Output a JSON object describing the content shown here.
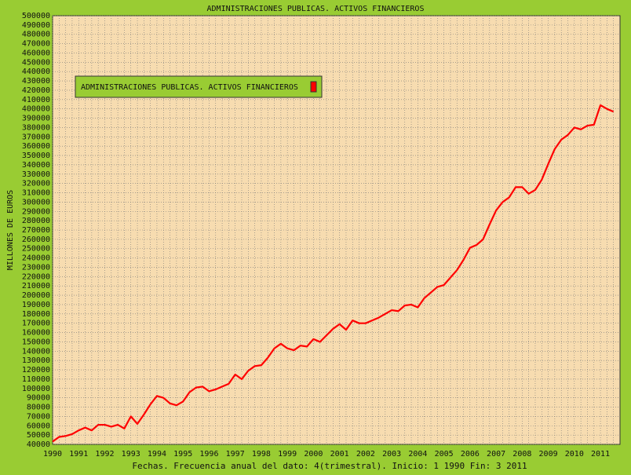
{
  "chart_data": {
    "type": "line",
    "title": "ADMINISTRACIONES PUBLICAS. ACTIVOS FINANCIEROS",
    "y_label": "MILLONES DE EUROS",
    "x_label": "Fechas. Frecuencia anual del dato: 4(trimestral). Inicio: 1 1990 Fin: 3 2011",
    "legend": "upper left",
    "grid": true,
    "xlim": [
      1990,
      2011.75
    ],
    "ylim": [
      40000,
      500000
    ],
    "xticks": [
      1990,
      1991,
      1992,
      1993,
      1994,
      1995,
      1996,
      1997,
      1998,
      1999,
      2000,
      2001,
      2002,
      2003,
      2004,
      2005,
      2006,
      2007,
      2008,
      2009,
      2010,
      2011
    ],
    "yticks": [
      40000,
      50000,
      60000,
      70000,
      80000,
      90000,
      100000,
      110000,
      120000,
      130000,
      140000,
      150000,
      160000,
      170000,
      180000,
      190000,
      200000,
      210000,
      220000,
      230000,
      240000,
      250000,
      260000,
      270000,
      280000,
      290000,
      300000,
      310000,
      320000,
      330000,
      340000,
      350000,
      360000,
      370000,
      380000,
      390000,
      400000,
      410000,
      420000,
      430000,
      440000,
      450000,
      460000,
      470000,
      480000,
      490000,
      500000
    ],
    "x": [
      1990,
      1990.25,
      1990.5,
      1990.75,
      1991,
      1991.25,
      1991.5,
      1991.75,
      1992,
      1992.25,
      1992.5,
      1992.75,
      1993,
      1993.25,
      1993.5,
      1993.75,
      1994,
      1994.25,
      1994.5,
      1994.75,
      1995,
      1995.25,
      1995.5,
      1995.75,
      1996,
      1996.25,
      1996.5,
      1996.75,
      1997,
      1997.25,
      1997.5,
      1997.75,
      1998,
      1998.25,
      1998.5,
      1998.75,
      1999,
      1999.25,
      1999.5,
      1999.75,
      2000,
      2000.25,
      2000.5,
      2000.75,
      2001,
      2001.25,
      2001.5,
      2001.75,
      2002,
      2002.25,
      2002.5,
      2002.75,
      2003,
      2003.25,
      2003.5,
      2003.75,
      2004,
      2004.25,
      2004.5,
      2004.75,
      2005,
      2005.25,
      2005.5,
      2005.75,
      2006,
      2006.25,
      2006.5,
      2006.75,
      2007,
      2007.25,
      2007.5,
      2007.75,
      2008,
      2008.25,
      2008.5,
      2008.75,
      2009,
      2009.25,
      2009.5,
      2009.75,
      2010,
      2010.25,
      2010.5,
      2010.75,
      2011,
      2011.25,
      2011.5
    ],
    "series": [
      {
        "name": "ADMINISTRACIONES PUBLICAS. ACTIVOS FINANCIEROS",
        "color": "#ff0000",
        "values": [
          43000,
          48000,
          49000,
          51000,
          55000,
          58000,
          55000,
          61000,
          61000,
          59000,
          61000,
          57000,
          70000,
          62000,
          72000,
          83000,
          92000,
          90000,
          84000,
          82000,
          86000,
          96000,
          101000,
          102000,
          97000,
          99000,
          102000,
          105000,
          115000,
          110000,
          119000,
          124000,
          125000,
          133000,
          143000,
          148000,
          143000,
          141000,
          146000,
          145000,
          153000,
          150000,
          157000,
          164000,
          169000,
          163000,
          173000,
          170000,
          170000,
          173000,
          176000,
          180000,
          184000,
          183000,
          189000,
          190000,
          187000,
          197000,
          203000,
          209000,
          211000,
          219000,
          227000,
          238000,
          251000,
          254000,
          260000,
          276000,
          291000,
          300000,
          305000,
          316000,
          316000,
          309000,
          313000,
          324000,
          341000,
          357000,
          367000,
          372000,
          380000,
          378000,
          382000,
          383000,
          404000,
          400000,
          397000
        ]
      }
    ]
  }
}
